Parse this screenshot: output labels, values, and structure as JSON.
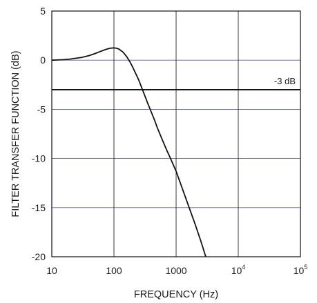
{
  "chart_data": {
    "type": "line",
    "xlabel": "FREQUENCY (Hz)",
    "ylabel": "FILTER TRANSFER FUNCTION (dB)",
    "x_scale": "log",
    "xlim": [
      10,
      100000
    ],
    "ylim": [
      -20,
      5
    ],
    "x_ticks": [
      {
        "value": 10,
        "label": "10"
      },
      {
        "value": 100,
        "label": "100"
      },
      {
        "value": 1000,
        "label": "1000"
      },
      {
        "value": 10000,
        "label": "10",
        "exponent": "4"
      },
      {
        "value": 100000,
        "label": "10",
        "exponent": "5"
      }
    ],
    "y_ticks": [
      {
        "value": 5,
        "label": "5"
      },
      {
        "value": 0,
        "label": "0"
      },
      {
        "value": -5,
        "label": "-5"
      },
      {
        "value": -10,
        "label": "-10"
      },
      {
        "value": -15,
        "label": "-15"
      },
      {
        "value": -20,
        "label": "-20"
      }
    ],
    "grid": true,
    "series": [
      {
        "x": [
          10,
          15,
          20,
          30,
          40,
          50,
          60,
          70,
          80,
          90,
          100,
          110,
          120,
          140,
          160,
          180,
          200,
          250,
          300,
          350,
          400,
          450,
          500,
          600,
          700,
          800,
          1000,
          1500,
          2000,
          2500,
          3000
        ],
        "y": [
          0.0,
          0.05,
          0.12,
          0.28,
          0.47,
          0.68,
          0.88,
          1.04,
          1.16,
          1.23,
          1.25,
          1.22,
          1.13,
          0.82,
          0.37,
          -0.15,
          -0.7,
          -2.0,
          -3.3,
          -4.4,
          -5.3,
          -6.1,
          -6.9,
          -8.1,
          -9.1,
          -9.9,
          -11.3,
          -14.4,
          -16.6,
          -18.4,
          -20.0
        ]
      }
    ],
    "reference_line": {
      "y": -3,
      "label": "-3 dB"
    }
  }
}
